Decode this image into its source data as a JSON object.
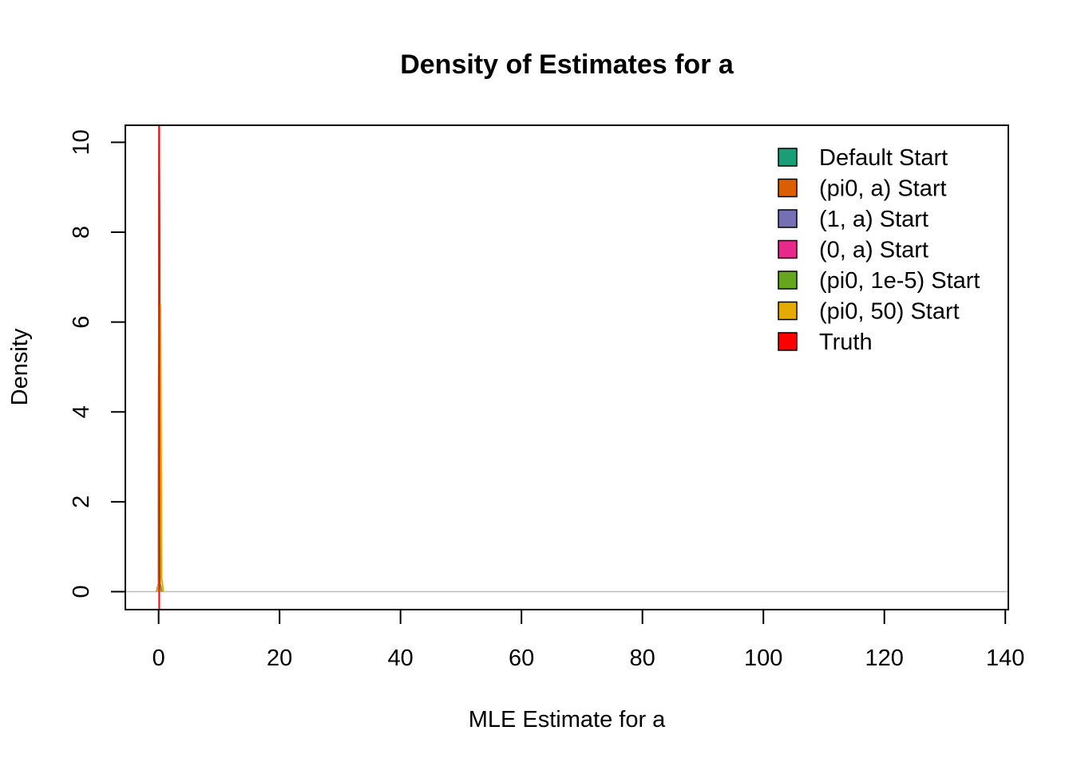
{
  "chart_data": {
    "type": "line",
    "title": "Density of Estimates for a",
    "xlabel": "MLE Estimate for a",
    "ylabel": "Density",
    "xlim": [
      -5.5,
      140.5
    ],
    "ylim": [
      -0.4,
      10.38
    ],
    "x_ticks": [
      0,
      20,
      40,
      60,
      80,
      100,
      120,
      140
    ],
    "y_ticks": [
      0,
      2,
      4,
      6,
      8,
      10
    ],
    "legend_position": "top-right",
    "zero_line": true,
    "series": [
      {
        "name": "Default Start",
        "color": "#1B9E77",
        "x": [
          -0.3,
          0.0,
          0.05,
          0.1,
          0.15,
          0.2,
          0.5
        ],
        "y": [
          0,
          0.2,
          6.4,
          10.38,
          6.4,
          0.2,
          0
        ]
      },
      {
        "name": "(pi0, a) Start",
        "color": "#D95F02",
        "x": [
          -0.3,
          0.0,
          0.05,
          0.1,
          0.15,
          0.2,
          0.5
        ],
        "y": [
          0,
          0.2,
          6.4,
          10.38,
          6.4,
          0.2,
          0
        ]
      },
      {
        "name": "(1, a) Start",
        "color": "#7570B3",
        "x": [
          -0.3,
          0.0,
          0.05,
          0.1,
          0.15,
          0.2,
          0.5
        ],
        "y": [
          0,
          0.2,
          6.4,
          10.38,
          6.4,
          0.2,
          0
        ]
      },
      {
        "name": "(0, a) Start",
        "color": "#E7298A",
        "x": [
          -0.3,
          0.0,
          0.05,
          0.1,
          0.15,
          0.2,
          0.5
        ],
        "y": [
          0,
          0.2,
          6.4,
          10.38,
          6.4,
          0.2,
          0
        ]
      },
      {
        "name": "(pi0, 1e-5) Start",
        "color": "#66A61E",
        "x": [
          -0.3,
          0.0,
          0.05,
          0.1,
          0.15,
          0.2,
          0.5
        ],
        "y": [
          0,
          0.2,
          6.4,
          10.38,
          6.4,
          0.2,
          0
        ]
      },
      {
        "name": "(pi0, 50) Start",
        "color": "#E6AB02",
        "x": [
          -0.2,
          0.1,
          0.2,
          0.3,
          0.4,
          0.5,
          0.8
        ],
        "y": [
          0,
          0.3,
          3.5,
          6.4,
          3.5,
          0.3,
          0
        ]
      }
    ],
    "reference_lines": [
      {
        "name": "Truth",
        "color": "#FF0000",
        "x": 0.1
      }
    ]
  }
}
